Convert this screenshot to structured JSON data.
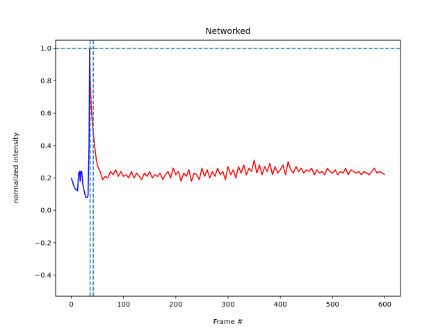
{
  "chart_data": {
    "type": "line",
    "title": "Networked",
    "xlabel": "Frame #",
    "ylabel": "normalized intensity",
    "xlim": [
      -30,
      630
    ],
    "ylim": [
      -0.53,
      1.05
    ],
    "xticks": [
      0,
      100,
      200,
      300,
      400,
      500,
      600
    ],
    "yticks": [
      -0.4,
      -0.2,
      0.0,
      0.2,
      0.4,
      0.6,
      0.8,
      1.0
    ],
    "ytick_labels": [
      "−0.4",
      "−0.2",
      "0.0",
      "0.2",
      "0.4",
      "0.6",
      "0.8",
      "1.0"
    ],
    "grid": false,
    "series": [
      {
        "color": "#0000ff",
        "x": [
          0,
          2,
          4,
          6,
          8,
          10,
          12,
          14,
          16,
          17,
          18,
          20,
          22,
          24,
          26,
          28,
          30,
          32,
          34,
          35
        ],
        "y": [
          0.2,
          0.18,
          0.16,
          0.14,
          0.13,
          0.13,
          0.12,
          0.23,
          0.24,
          0.18,
          0.24,
          0.24,
          0.16,
          0.13,
          0.1,
          0.08,
          0.08,
          0.09,
          0.4,
          1.0
        ]
      },
      {
        "color": "#ff0000",
        "x": [
          35,
          36,
          38,
          40,
          42,
          44,
          46,
          48,
          50,
          52,
          55,
          58,
          60,
          65,
          70,
          75,
          80,
          85,
          90,
          95,
          100,
          105,
          110,
          115,
          120,
          125,
          130,
          135,
          140,
          145,
          150,
          155,
          160,
          165,
          170,
          175,
          180,
          185,
          190,
          195,
          200,
          205,
          210,
          215,
          220,
          225,
          230,
          235,
          240,
          245,
          250,
          255,
          260,
          265,
          270,
          275,
          280,
          285,
          290,
          295,
          300,
          305,
          310,
          315,
          320,
          325,
          330,
          335,
          340,
          345,
          350,
          355,
          360,
          365,
          370,
          375,
          380,
          385,
          390,
          395,
          400,
          405,
          410,
          415,
          420,
          425,
          430,
          435,
          440,
          445,
          450,
          455,
          460,
          465,
          470,
          475,
          480,
          485,
          490,
          495,
          500,
          505,
          510,
          515,
          520,
          525,
          530,
          535,
          540,
          545,
          550,
          555,
          560,
          565,
          570,
          575,
          580,
          585,
          590,
          595,
          600
        ],
        "y": [
          1.0,
          0.85,
          0.65,
          0.55,
          0.48,
          0.42,
          0.36,
          0.31,
          0.28,
          0.26,
          0.24,
          0.21,
          0.19,
          0.21,
          0.2,
          0.24,
          0.22,
          0.25,
          0.21,
          0.24,
          0.21,
          0.22,
          0.2,
          0.24,
          0.2,
          0.23,
          0.21,
          0.19,
          0.23,
          0.21,
          0.24,
          0.2,
          0.22,
          0.21,
          0.23,
          0.19,
          0.22,
          0.24,
          0.2,
          0.26,
          0.22,
          0.24,
          0.18,
          0.23,
          0.21,
          0.25,
          0.18,
          0.23,
          0.22,
          0.19,
          0.26,
          0.21,
          0.25,
          0.2,
          0.24,
          0.21,
          0.26,
          0.22,
          0.24,
          0.19,
          0.27,
          0.22,
          0.25,
          0.2,
          0.27,
          0.23,
          0.28,
          0.22,
          0.26,
          0.24,
          0.31,
          0.23,
          0.28,
          0.22,
          0.27,
          0.24,
          0.29,
          0.22,
          0.27,
          0.23,
          0.25,
          0.28,
          0.22,
          0.3,
          0.25,
          0.23,
          0.27,
          0.24,
          0.26,
          0.23,
          0.25,
          0.24,
          0.26,
          0.22,
          0.25,
          0.23,
          0.24,
          0.22,
          0.26,
          0.24,
          0.23,
          0.25,
          0.22,
          0.24,
          0.23,
          0.26,
          0.22,
          0.25,
          0.24,
          0.23,
          0.24,
          0.22,
          0.24,
          0.23,
          0.22,
          0.24,
          0.26,
          0.23,
          0.24,
          0.23,
          0.22
        ]
      }
    ],
    "reference_lines": [
      {
        "orientation": "horizontal",
        "value": 1.0,
        "color": "#1f77b4",
        "style": "dashed"
      },
      {
        "orientation": "vertical",
        "value": 36,
        "color": "#1f77b4",
        "style": "dashed"
      },
      {
        "orientation": "vertical",
        "value": 42,
        "color": "#1f77b4",
        "style": "dashed"
      }
    ]
  }
}
